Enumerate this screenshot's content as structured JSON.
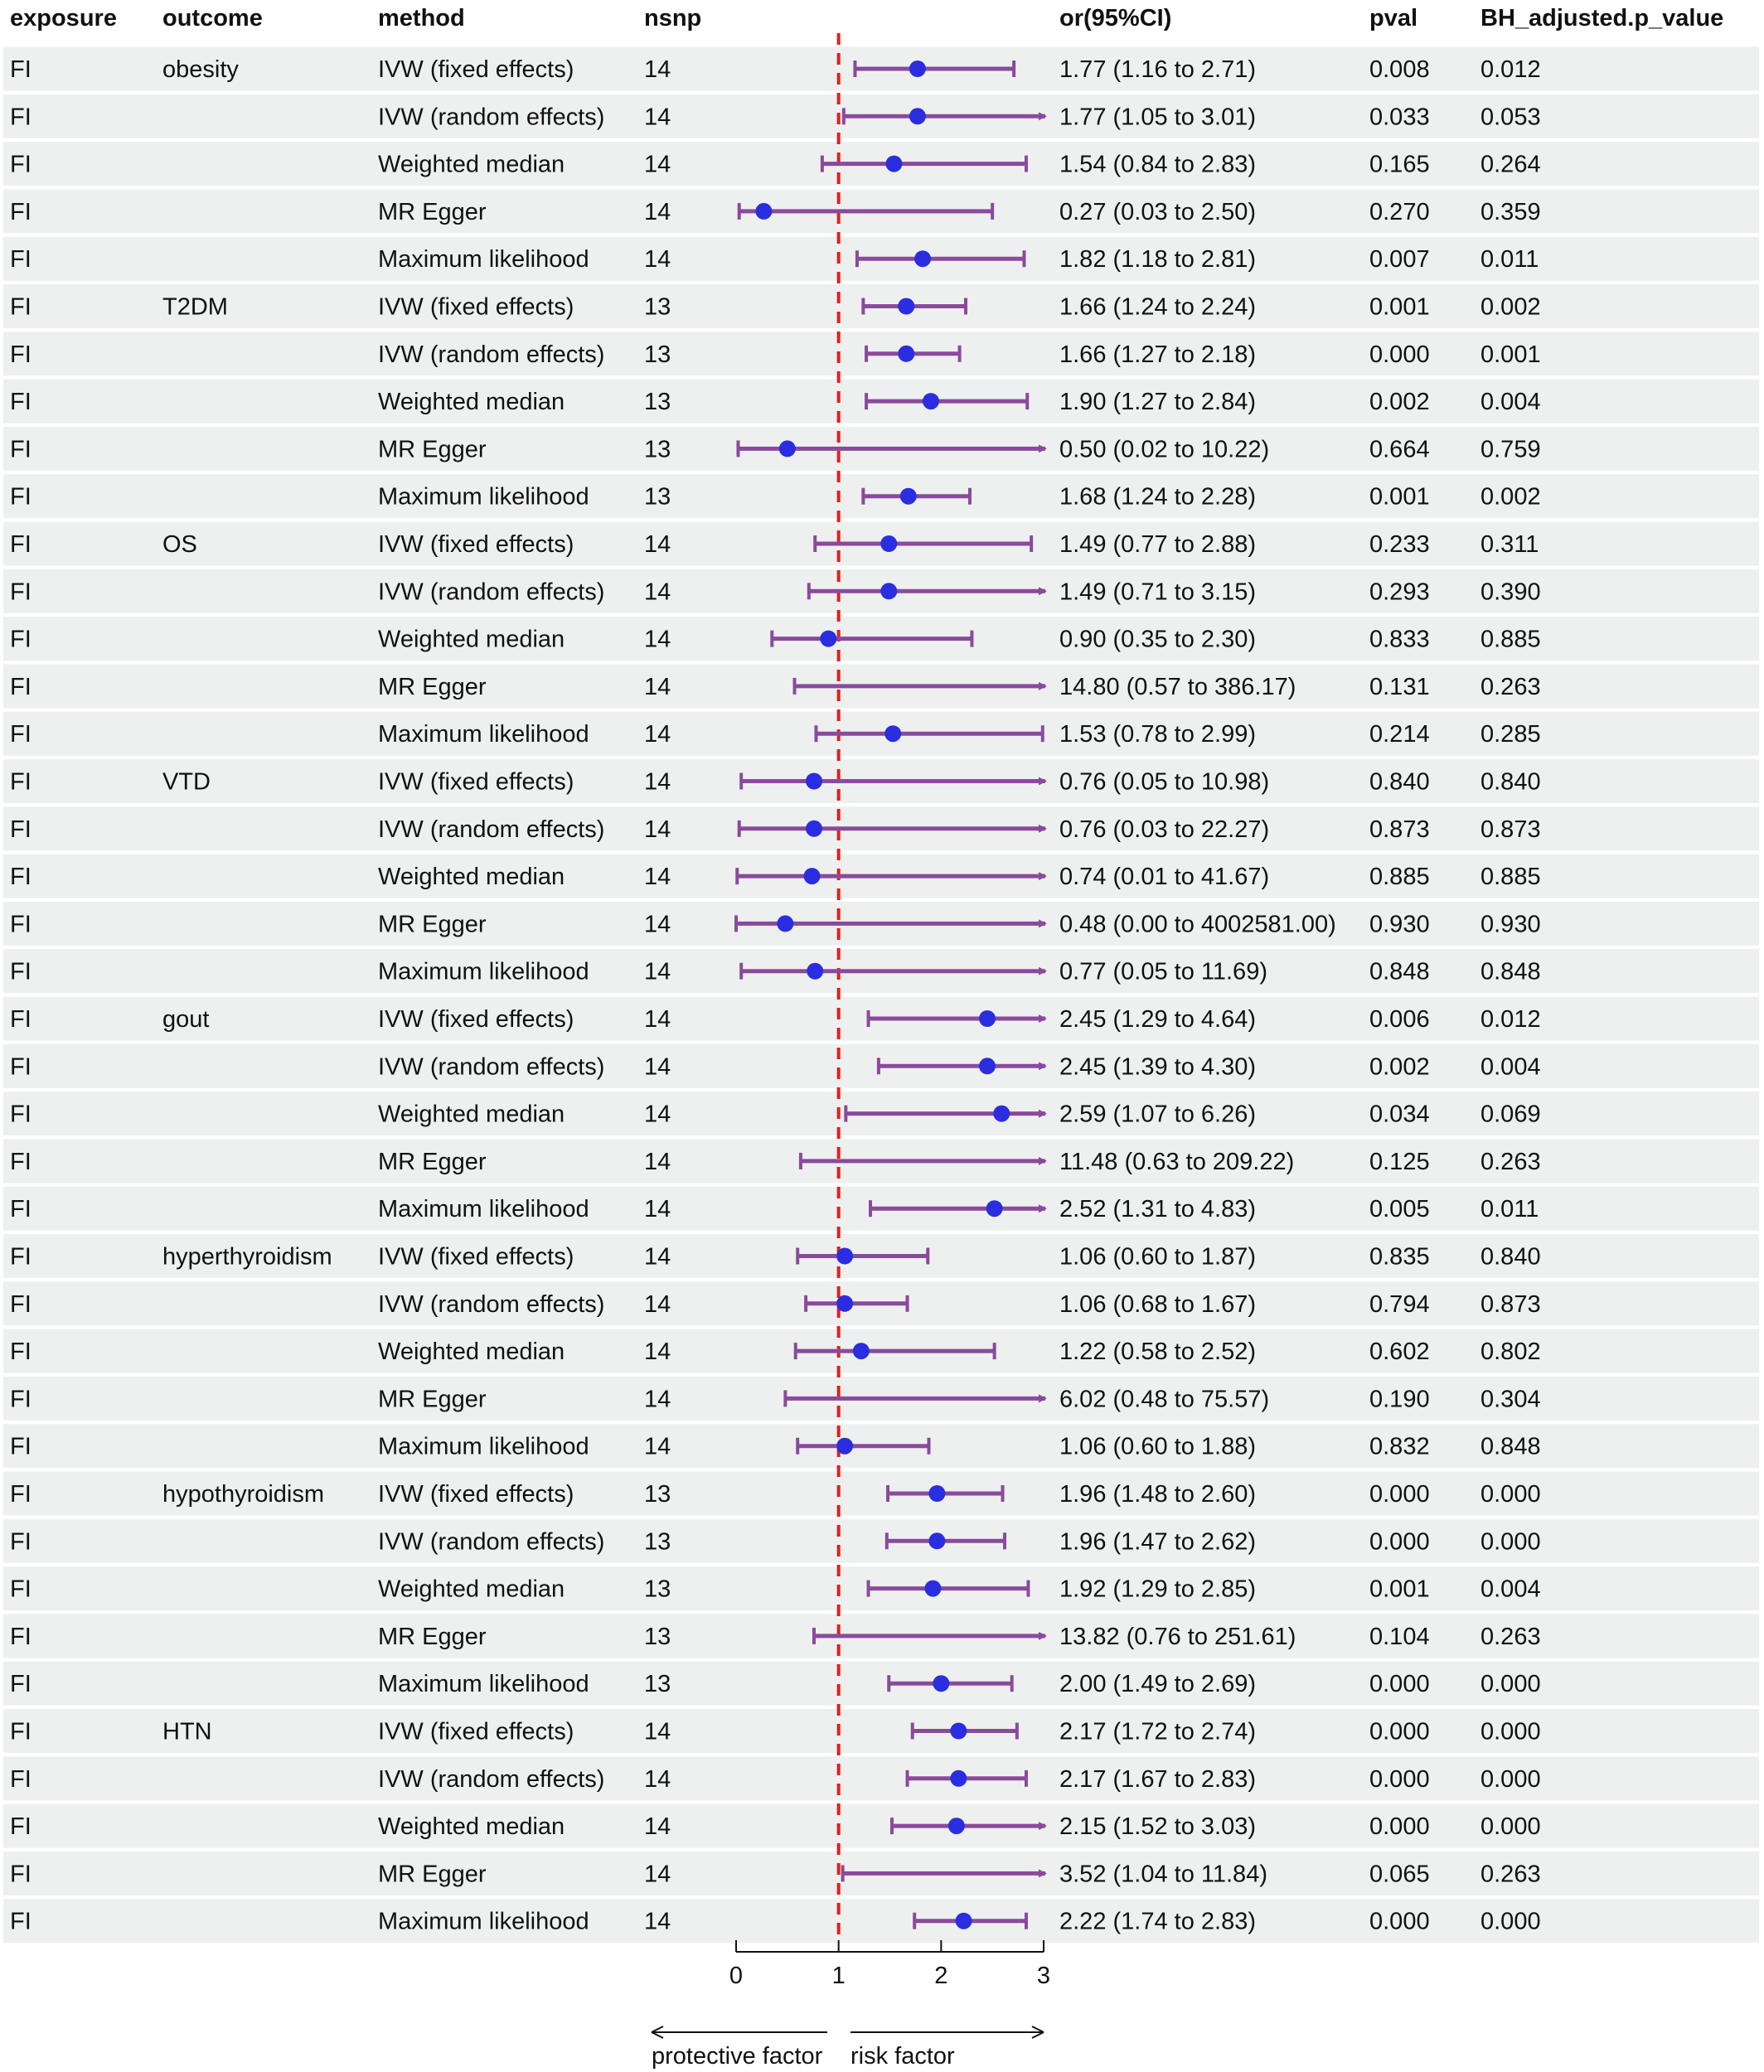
{
  "columns": {
    "exposure": "exposure",
    "outcome": "outcome",
    "method": "method",
    "nsnp": "nsnp",
    "or_ci": "or(95%CI)",
    "pval": "pval",
    "bh": "BH_adjusted.p_value"
  },
  "axis": {
    "ticks": [
      "0",
      "1",
      "2",
      "3"
    ],
    "xlim": [
      0,
      3
    ],
    "reference_line": 1,
    "left_label": "protective factor",
    "right_label": "risk factor"
  },
  "colors": {
    "stripe": "#eef0f0",
    "ci_line": "#8a4a9c",
    "point": "#2a2ee0",
    "reference": "#e0201c"
  },
  "chart_data": {
    "type": "table",
    "subtype": "forest-plot",
    "x_range": [
      0,
      3
    ],
    "reference": 1,
    "rows": [
      {
        "exposure": "FI",
        "outcome": "obesity",
        "method": "IVW (fixed effects)",
        "nsnp": "14",
        "or": 1.77,
        "lo": 1.16,
        "hi": 2.71,
        "or_ci": "1.77 (1.16 to 2.71)",
        "pval": "0.008",
        "bh": "0.012"
      },
      {
        "exposure": "FI",
        "outcome": "",
        "method": "IVW (random effects)",
        "nsnp": "14",
        "or": 1.77,
        "lo": 1.05,
        "hi": 3.01,
        "or_ci": "1.77 (1.05 to 3.01)",
        "pval": "0.033",
        "bh": "0.053"
      },
      {
        "exposure": "FI",
        "outcome": "",
        "method": "Weighted median",
        "nsnp": "14",
        "or": 1.54,
        "lo": 0.84,
        "hi": 2.83,
        "or_ci": "1.54 (0.84 to 2.83)",
        "pval": "0.165",
        "bh": "0.264"
      },
      {
        "exposure": "FI",
        "outcome": "",
        "method": "MR Egger",
        "nsnp": "14",
        "or": 0.27,
        "lo": 0.03,
        "hi": 2.5,
        "or_ci": "0.27 (0.03 to 2.50)",
        "pval": "0.270",
        "bh": "0.359"
      },
      {
        "exposure": "FI",
        "outcome": "",
        "method": "Maximum likelihood",
        "nsnp": "14",
        "or": 1.82,
        "lo": 1.18,
        "hi": 2.81,
        "or_ci": "1.82 (1.18 to 2.81)",
        "pval": "0.007",
        "bh": "0.011"
      },
      {
        "exposure": "FI",
        "outcome": "T2DM",
        "method": "IVW (fixed effects)",
        "nsnp": "13",
        "or": 1.66,
        "lo": 1.24,
        "hi": 2.24,
        "or_ci": "1.66 (1.24 to 2.24)",
        "pval": "0.001",
        "bh": "0.002"
      },
      {
        "exposure": "FI",
        "outcome": "",
        "method": "IVW (random effects)",
        "nsnp": "13",
        "or": 1.66,
        "lo": 1.27,
        "hi": 2.18,
        "or_ci": "1.66 (1.27 to 2.18)",
        "pval": "0.000",
        "bh": "0.001"
      },
      {
        "exposure": "FI",
        "outcome": "",
        "method": "Weighted median",
        "nsnp": "13",
        "or": 1.9,
        "lo": 1.27,
        "hi": 2.84,
        "or_ci": "1.90 (1.27 to 2.84)",
        "pval": "0.002",
        "bh": "0.004"
      },
      {
        "exposure": "FI",
        "outcome": "",
        "method": "MR Egger",
        "nsnp": "13",
        "or": 0.5,
        "lo": 0.02,
        "hi": 10.22,
        "or_ci": "0.50 (0.02 to 10.22)",
        "pval": "0.664",
        "bh": "0.759"
      },
      {
        "exposure": "FI",
        "outcome": "",
        "method": "Maximum likelihood",
        "nsnp": "13",
        "or": 1.68,
        "lo": 1.24,
        "hi": 2.28,
        "or_ci": "1.68 (1.24 to 2.28)",
        "pval": "0.001",
        "bh": "0.002"
      },
      {
        "exposure": "FI",
        "outcome": "OS",
        "method": "IVW (fixed effects)",
        "nsnp": "14",
        "or": 1.49,
        "lo": 0.77,
        "hi": 2.88,
        "or_ci": "1.49 (0.77 to 2.88)",
        "pval": "0.233",
        "bh": "0.311"
      },
      {
        "exposure": "FI",
        "outcome": "",
        "method": "IVW (random effects)",
        "nsnp": "14",
        "or": 1.49,
        "lo": 0.71,
        "hi": 3.15,
        "or_ci": "1.49 (0.71 to 3.15)",
        "pval": "0.293",
        "bh": "0.390"
      },
      {
        "exposure": "FI",
        "outcome": "",
        "method": "Weighted median",
        "nsnp": "14",
        "or": 0.9,
        "lo": 0.35,
        "hi": 2.3,
        "or_ci": "0.90 (0.35 to 2.30)",
        "pval": "0.833",
        "bh": "0.885"
      },
      {
        "exposure": "FI",
        "outcome": "",
        "method": "MR Egger",
        "nsnp": "14",
        "or": 14.8,
        "lo": 0.57,
        "hi": 386.17,
        "or_ci": "14.80 (0.57 to 386.17)",
        "pval": "0.131",
        "bh": "0.263"
      },
      {
        "exposure": "FI",
        "outcome": "",
        "method": "Maximum likelihood",
        "nsnp": "14",
        "or": 1.53,
        "lo": 0.78,
        "hi": 2.99,
        "or_ci": "1.53 (0.78 to 2.99)",
        "pval": "0.214",
        "bh": "0.285"
      },
      {
        "exposure": "FI",
        "outcome": "VTD",
        "method": "IVW (fixed effects)",
        "nsnp": "14",
        "or": 0.76,
        "lo": 0.05,
        "hi": 10.98,
        "or_ci": "0.76 (0.05 to 10.98)",
        "pval": "0.840",
        "bh": "0.840"
      },
      {
        "exposure": "FI",
        "outcome": "",
        "method": "IVW (random effects)",
        "nsnp": "14",
        "or": 0.76,
        "lo": 0.03,
        "hi": 22.27,
        "or_ci": "0.76 (0.03 to 22.27)",
        "pval": "0.873",
        "bh": "0.873"
      },
      {
        "exposure": "FI",
        "outcome": "",
        "method": "Weighted median",
        "nsnp": "14",
        "or": 0.74,
        "lo": 0.01,
        "hi": 41.67,
        "or_ci": "0.74 (0.01 to 41.67)",
        "pval": "0.885",
        "bh": "0.885"
      },
      {
        "exposure": "FI",
        "outcome": "",
        "method": "MR Egger",
        "nsnp": "14",
        "or": 0.48,
        "lo": 0.0,
        "hi": 4002581.0,
        "or_ci": "0.48 (0.00 to 4002581.00)",
        "pval": "0.930",
        "bh": "0.930"
      },
      {
        "exposure": "FI",
        "outcome": "",
        "method": "Maximum likelihood",
        "nsnp": "14",
        "or": 0.77,
        "lo": 0.05,
        "hi": 11.69,
        "or_ci": "0.77 (0.05 to 11.69)",
        "pval": "0.848",
        "bh": "0.848"
      },
      {
        "exposure": "FI",
        "outcome": "gout",
        "method": "IVW (fixed effects)",
        "nsnp": "14",
        "or": 2.45,
        "lo": 1.29,
        "hi": 4.64,
        "or_ci": "2.45 (1.29 to 4.64)",
        "pval": "0.006",
        "bh": "0.012"
      },
      {
        "exposure": "FI",
        "outcome": "",
        "method": "IVW (random effects)",
        "nsnp": "14",
        "or": 2.45,
        "lo": 1.39,
        "hi": 4.3,
        "or_ci": "2.45 (1.39 to 4.30)",
        "pval": "0.002",
        "bh": "0.004"
      },
      {
        "exposure": "FI",
        "outcome": "",
        "method": "Weighted median",
        "nsnp": "14",
        "or": 2.59,
        "lo": 1.07,
        "hi": 6.26,
        "or_ci": "2.59 (1.07 to 6.26)",
        "pval": "0.034",
        "bh": "0.069"
      },
      {
        "exposure": "FI",
        "outcome": "",
        "method": "MR Egger",
        "nsnp": "14",
        "or": 11.48,
        "lo": 0.63,
        "hi": 209.22,
        "or_ci": "11.48 (0.63 to 209.22)",
        "pval": "0.125",
        "bh": "0.263"
      },
      {
        "exposure": "FI",
        "outcome": "",
        "method": "Maximum likelihood",
        "nsnp": "14",
        "or": 2.52,
        "lo": 1.31,
        "hi": 4.83,
        "or_ci": "2.52 (1.31 to 4.83)",
        "pval": "0.005",
        "bh": "0.011"
      },
      {
        "exposure": "FI",
        "outcome": "hyperthyroidism",
        "method": "IVW (fixed effects)",
        "nsnp": "14",
        "or": 1.06,
        "lo": 0.6,
        "hi": 1.87,
        "or_ci": "1.06 (0.60 to 1.87)",
        "pval": "0.835",
        "bh": "0.840"
      },
      {
        "exposure": "FI",
        "outcome": "",
        "method": "IVW (random effects)",
        "nsnp": "14",
        "or": 1.06,
        "lo": 0.68,
        "hi": 1.67,
        "or_ci": "1.06 (0.68 to 1.67)",
        "pval": "0.794",
        "bh": "0.873"
      },
      {
        "exposure": "FI",
        "outcome": "",
        "method": "Weighted median",
        "nsnp": "14",
        "or": 1.22,
        "lo": 0.58,
        "hi": 2.52,
        "or_ci": "1.22 (0.58 to 2.52)",
        "pval": "0.602",
        "bh": "0.802"
      },
      {
        "exposure": "FI",
        "outcome": "",
        "method": "MR Egger",
        "nsnp": "14",
        "or": 6.02,
        "lo": 0.48,
        "hi": 75.57,
        "or_ci": "6.02 (0.48 to 75.57)",
        "pval": "0.190",
        "bh": "0.304"
      },
      {
        "exposure": "FI",
        "outcome": "",
        "method": "Maximum likelihood",
        "nsnp": "14",
        "or": 1.06,
        "lo": 0.6,
        "hi": 1.88,
        "or_ci": "1.06 (0.60 to 1.88)",
        "pval": "0.832",
        "bh": "0.848"
      },
      {
        "exposure": "FI",
        "outcome": "hypothyroidism",
        "method": "IVW (fixed effects)",
        "nsnp": "13",
        "or": 1.96,
        "lo": 1.48,
        "hi": 2.6,
        "or_ci": "1.96 (1.48 to 2.60)",
        "pval": "0.000",
        "bh": "0.000"
      },
      {
        "exposure": "FI",
        "outcome": "",
        "method": "IVW (random effects)",
        "nsnp": "13",
        "or": 1.96,
        "lo": 1.47,
        "hi": 2.62,
        "or_ci": "1.96 (1.47 to 2.62)",
        "pval": "0.000",
        "bh": "0.000"
      },
      {
        "exposure": "FI",
        "outcome": "",
        "method": "Weighted median",
        "nsnp": "13",
        "or": 1.92,
        "lo": 1.29,
        "hi": 2.85,
        "or_ci": "1.92 (1.29 to 2.85)",
        "pval": "0.001",
        "bh": "0.004"
      },
      {
        "exposure": "FI",
        "outcome": "",
        "method": "MR Egger",
        "nsnp": "13",
        "or": 13.82,
        "lo": 0.76,
        "hi": 251.61,
        "or_ci": "13.82 (0.76 to 251.61)",
        "pval": "0.104",
        "bh": "0.263"
      },
      {
        "exposure": "FI",
        "outcome": "",
        "method": "Maximum likelihood",
        "nsnp": "13",
        "or": 2.0,
        "lo": 1.49,
        "hi": 2.69,
        "or_ci": "2.00 (1.49 to 2.69)",
        "pval": "0.000",
        "bh": "0.000"
      },
      {
        "exposure": "FI",
        "outcome": "HTN",
        "method": "IVW (fixed effects)",
        "nsnp": "14",
        "or": 2.17,
        "lo": 1.72,
        "hi": 2.74,
        "or_ci": "2.17 (1.72 to 2.74)",
        "pval": "0.000",
        "bh": "0.000"
      },
      {
        "exposure": "FI",
        "outcome": "",
        "method": "IVW (random effects)",
        "nsnp": "14",
        "or": 2.17,
        "lo": 1.67,
        "hi": 2.83,
        "or_ci": "2.17 (1.67 to 2.83)",
        "pval": "0.000",
        "bh": "0.000"
      },
      {
        "exposure": "FI",
        "outcome": "",
        "method": "Weighted median",
        "nsnp": "14",
        "or": 2.15,
        "lo": 1.52,
        "hi": 3.03,
        "or_ci": "2.15 (1.52 to 3.03)",
        "pval": "0.000",
        "bh": "0.000"
      },
      {
        "exposure": "FI",
        "outcome": "",
        "method": "MR Egger",
        "nsnp": "14",
        "or": 3.52,
        "lo": 1.04,
        "hi": 11.84,
        "or_ci": "3.52 (1.04 to 11.84)",
        "pval": "0.065",
        "bh": "0.263"
      },
      {
        "exposure": "FI",
        "outcome": "",
        "method": "Maximum likelihood",
        "nsnp": "14",
        "or": 2.22,
        "lo": 1.74,
        "hi": 2.83,
        "or_ci": "2.22 (1.74 to 2.83)",
        "pval": "0.000",
        "bh": "0.000"
      }
    ]
  }
}
